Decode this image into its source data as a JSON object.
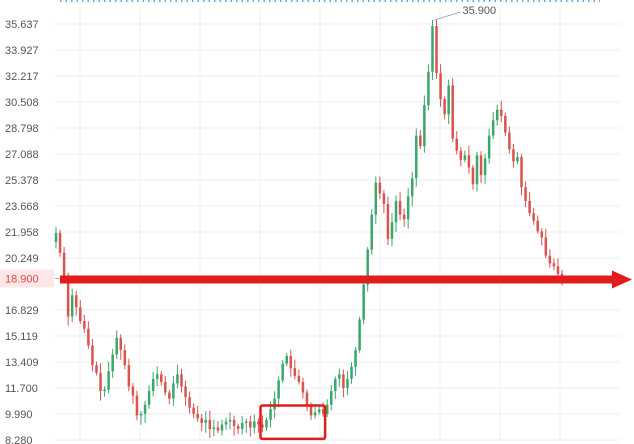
{
  "chart_data": {
    "type": "candlestick",
    "y_ticks": [
      "35.637",
      "33.927",
      "32.217",
      "30.508",
      "28.798",
      "27.088",
      "25.378",
      "23.668",
      "21.958",
      "20.249",
      "18.900",
      "16.829",
      "15.119",
      "13.409",
      "11.700",
      "9.990",
      "8.280"
    ],
    "ylim": [
      8.28,
      35.637
    ],
    "grid": true,
    "current_price": {
      "label": "18.900",
      "value": 18.9
    },
    "max_annotation": {
      "label": "35.900",
      "value": 35.9
    },
    "closes": [
      21.9,
      20.6,
      19.1,
      16.4,
      17.8,
      17.0,
      16.1,
      15.6,
      14.5,
      13.2,
      12.7,
      11.5,
      11.6,
      12.8,
      13.9,
      15.0,
      14.2,
      13.2,
      11.8,
      11.2,
      9.9,
      10.0,
      10.6,
      11.5,
      12.3,
      12.6,
      12.1,
      11.4,
      11.0,
      12.0,
      12.6,
      11.8,
      11.1,
      10.4,
      10.0,
      9.7,
      9.4,
      9.6,
      9.0,
      9.1,
      8.9,
      9.3,
      9.5,
      9.6,
      9.2,
      9.0,
      9.4,
      9.5,
      9.1,
      9.5,
      9.3,
      9.1,
      9.6,
      10.3,
      11.0,
      12.2,
      13.3,
      13.8,
      13.0,
      12.5,
      12.1,
      11.4,
      10.5,
      9.9,
      10.1,
      10.3,
      10.0,
      10.6,
      11.5,
      12.3,
      12.6,
      11.7,
      12.3,
      13.1,
      14.2,
      16.2,
      18.5,
      20.8,
      23.1,
      25.2,
      24.5,
      23.8,
      21.5,
      22.6,
      24.0,
      23.1,
      22.8,
      24.3,
      25.5,
      28.3,
      27.6,
      30.3,
      32.5,
      35.5,
      32.4,
      30.7,
      29.7,
      31.6,
      28.1,
      27.3,
      26.7,
      27.0,
      26.2,
      25.1,
      27.0,
      25.7,
      26.8,
      28.3,
      29.3,
      30.0,
      29.6,
      28.5,
      27.4,
      26.6,
      26.9,
      24.9,
      24.0,
      23.2,
      22.7,
      22.0,
      21.6,
      20.4,
      19.9,
      19.7,
      19.2,
      18.9
    ],
    "annotations": [
      {
        "type": "box",
        "label": "",
        "x_range": [
          52,
          65
        ]
      },
      {
        "type": "arrow",
        "label": "",
        "value": 18.9
      }
    ]
  },
  "colors": {
    "up": "#3aa76d",
    "down": "#d9534f",
    "grid": "#ececec",
    "tick": "#555555",
    "price_highlight": "#fce6e6",
    "price_text": "#e04848",
    "arrow": "#e21b1b",
    "box": "#e21b1b"
  }
}
